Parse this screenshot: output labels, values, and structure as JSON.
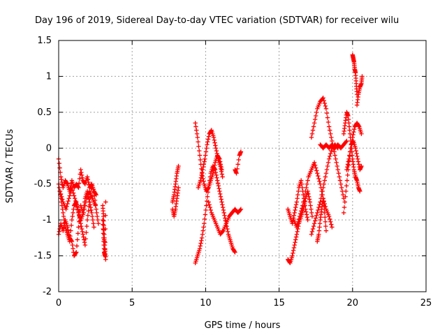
{
  "chart_data": {
    "type": "scatter",
    "title": "Day 196 of 2019, Sidereal Day-to-day VTEC variation (SDTVAR) for receiver wilu",
    "xlabel": "GPS time / hours",
    "ylabel": "SDTVAR / TECUs",
    "xlim": [
      0,
      25
    ],
    "ylim": [
      -2,
      1.5
    ],
    "xticks": [
      0,
      5,
      10,
      15,
      20,
      25
    ],
    "yticks": [
      -2,
      -1.5,
      -1,
      -0.5,
      0,
      0.5,
      1,
      1.5
    ],
    "grid": true,
    "marker": "+",
    "series": [
      {
        "name": "SDTVAR",
        "color": "#ff0000",
        "tracks": [
          {
            "x": [
              0.0,
              0.15,
              0.3,
              0.45,
              0.6,
              0.75,
              0.9,
              1.05,
              1.2,
              1.35,
              1.5,
              1.65,
              1.8,
              1.95,
              2.1,
              2.25,
              2.4,
              2.55
            ],
            "y": [
              -0.15,
              -0.4,
              -0.55,
              -0.45,
              -0.5,
              -0.6,
              -0.45,
              -0.55,
              -0.5,
              -0.55,
              -0.3,
              -0.45,
              -0.5,
              -0.4,
              -0.55,
              -0.5,
              -0.6,
              -0.65
            ]
          },
          {
            "x": [
              0.0,
              0.15,
              0.3,
              0.45,
              0.6,
              0.75,
              0.9,
              1.05,
              1.2,
              1.35,
              1.5,
              1.65,
              1.8,
              1.95,
              2.1,
              2.25,
              2.4
            ],
            "y": [
              -1.2,
              -1.05,
              -1.15,
              -1.0,
              -1.1,
              -1.25,
              -1.3,
              -1.5,
              -1.45,
              -1.1,
              -0.8,
              -0.9,
              -0.7,
              -0.6,
              -0.75,
              -0.9,
              -1.1
            ]
          },
          {
            "x": [
              0.0,
              0.15,
              0.3,
              0.45,
              0.6,
              0.75,
              0.9,
              1.05,
              1.2,
              1.35,
              1.5,
              1.65,
              1.8,
              1.95,
              2.1,
              2.25,
              2.4,
              2.55,
              2.7
            ],
            "y": [
              -0.5,
              -0.7,
              -0.9,
              -1.1,
              -1.2,
              -1.3,
              -1.0,
              -0.8,
              -0.75,
              -0.9,
              -1.05,
              -1.2,
              -1.35,
              -1.0,
              -0.75,
              -0.5,
              -0.6,
              -0.85,
              -1.05
            ]
          },
          {
            "x": [
              0.1,
              0.3,
              0.5,
              0.7,
              0.9,
              1.1,
              1.3,
              1.5,
              1.7,
              1.9,
              2.1,
              2.3,
              2.5
            ],
            "y": [
              -0.6,
              -0.75,
              -0.85,
              -0.7,
              -0.55,
              -0.7,
              -0.85,
              -1.0,
              -0.9,
              -0.7,
              -0.6,
              -0.7,
              -0.8
            ]
          },
          {
            "x": [
              3.0,
              3.05,
              3.1,
              3.15,
              3.2,
              3.0,
              3.05,
              3.1,
              3.15,
              3.2
            ],
            "y": [
              -0.8,
              -0.95,
              -1.2,
              -1.4,
              -1.55,
              -1.0,
              -1.25,
              -1.45,
              -1.5,
              -0.75
            ]
          },
          {
            "x": [
              7.75,
              7.85,
              7.95,
              8.05,
              8.15
            ],
            "y": [
              -0.75,
              -0.65,
              -0.5,
              -0.35,
              -0.25
            ]
          },
          {
            "x": [
              7.75,
              7.85,
              7.95,
              8.05,
              8.15
            ],
            "y": [
              -0.85,
              -0.95,
              -0.85,
              -0.7,
              -0.55
            ]
          },
          {
            "x": [
              9.3,
              9.45,
              9.6,
              9.75,
              9.9,
              10.05,
              10.2,
              10.35,
              10.5,
              10.65,
              10.8,
              10.95,
              11.1
            ],
            "y": [
              0.35,
              0.15,
              -0.1,
              -0.35,
              -0.5,
              -0.6,
              -0.55,
              -0.45,
              -0.35,
              -0.2,
              -0.1,
              -0.15,
              -0.3
            ]
          },
          {
            "x": [
              9.3,
              9.45,
              9.6,
              9.75,
              9.9,
              10.05,
              10.2,
              10.35,
              10.5,
              10.65,
              10.8,
              10.95,
              11.1,
              11.25,
              11.4,
              11.55,
              11.7,
              11.85,
              12.0
            ],
            "y": [
              -1.6,
              -1.5,
              -1.4,
              -1.25,
              -1.05,
              -0.8,
              -0.55,
              -0.35,
              -0.25,
              -0.3,
              -0.45,
              -0.6,
              -0.75,
              -0.9,
              -1.05,
              -1.2,
              -1.3,
              -1.4,
              -1.45
            ]
          },
          {
            "x": [
              9.5,
              9.65,
              9.8,
              9.95,
              10.1,
              10.25,
              10.4,
              10.55,
              10.7,
              10.85,
              11.0,
              11.15
            ],
            "y": [
              -0.55,
              -0.45,
              -0.3,
              -0.15,
              0.05,
              0.2,
              0.25,
              0.15,
              0.0,
              -0.15,
              -0.25,
              -0.4
            ]
          },
          {
            "x": [
              10.2,
              10.4,
              10.6,
              10.8,
              11.0,
              11.2,
              11.4,
              11.6,
              11.8,
              12.0,
              12.2,
              12.4
            ],
            "y": [
              -0.75,
              -0.9,
              -1.0,
              -1.1,
              -1.2,
              -1.15,
              -1.05,
              -0.95,
              -0.9,
              -0.85,
              -0.9,
              -0.85
            ]
          },
          {
            "x": [
              12.0,
              12.1,
              12.3,
              12.4
            ],
            "y": [
              -0.3,
              -0.35,
              -0.1,
              -0.05
            ]
          },
          {
            "x": [
              15.6,
              15.75,
              15.9,
              16.05,
              16.2,
              16.35,
              16.5,
              16.65,
              16.8,
              16.95,
              17.1,
              17.25
            ],
            "y": [
              -1.55,
              -1.6,
              -1.5,
              -1.35,
              -1.2,
              -1.05,
              -0.95,
              -0.85,
              -0.7,
              -0.6,
              -0.75,
              -0.95
            ]
          },
          {
            "x": [
              15.6,
              15.75,
              15.9,
              16.05,
              16.2,
              16.35,
              16.5,
              16.65,
              16.8,
              16.95
            ],
            "y": [
              -0.85,
              -0.95,
              -1.05,
              -0.9,
              -0.75,
              -0.55,
              -0.45,
              -0.65,
              -0.85,
              -1.0
            ]
          },
          {
            "x": [
              16.0,
              16.2,
              16.4,
              16.6,
              16.8,
              17.0,
              17.2,
              17.4,
              17.6,
              17.8,
              18.0,
              18.2,
              18.4,
              18.6
            ],
            "y": [
              -1.0,
              -1.1,
              -0.95,
              -0.8,
              -0.6,
              -0.4,
              -0.3,
              -0.2,
              -0.35,
              -0.5,
              -0.7,
              -0.85,
              -0.95,
              -1.1
            ]
          },
          {
            "x": [
              17.2,
              17.4,
              17.6,
              17.8,
              18.0,
              18.2,
              18.4,
              18.6,
              18.8,
              19.0,
              19.2,
              19.4
            ],
            "y": [
              0.15,
              0.35,
              0.55,
              0.65,
              0.7,
              0.55,
              0.3,
              0.1,
              -0.1,
              -0.3,
              -0.5,
              -0.7
            ]
          },
          {
            "x": [
              17.2,
              17.4,
              17.6,
              17.8,
              18.0,
              18.2,
              18.4,
              18.6,
              18.8,
              19.0
            ],
            "y": [
              -1.2,
              -1.05,
              -0.9,
              -0.75,
              -0.55,
              -0.35,
              -0.15,
              0.0,
              0.05,
              0.0
            ]
          },
          {
            "x": [
              17.8,
              18.0,
              18.2,
              18.4,
              18.6,
              18.8,
              19.0,
              19.2,
              19.4,
              19.6
            ],
            "y": [
              0.05,
              0.0,
              0.05,
              0.0,
              0.05,
              0.0,
              0.05,
              0.0,
              0.05,
              0.1
            ]
          },
          {
            "x": [
              17.6,
              17.7,
              17.8,
              17.9,
              18.0,
              18.1,
              18.2
            ],
            "y": [
              -1.3,
              -1.2,
              -1.0,
              -0.85,
              -0.7,
              -0.9,
              -1.15
            ]
          },
          {
            "x": [
              19.4,
              19.5,
              19.6,
              19.7,
              19.8,
              19.9,
              20.0,
              20.1,
              20.2,
              20.3,
              20.4,
              20.5
            ],
            "y": [
              0.2,
              0.35,
              0.5,
              0.45,
              0.25,
              0.05,
              -0.15,
              -0.3,
              -0.4,
              -0.45,
              -0.55,
              -0.6
            ]
          },
          {
            "x": [
              19.4,
              19.55,
              19.7,
              19.85,
              20.0,
              20.15,
              20.3,
              20.45,
              20.6
            ],
            "y": [
              -0.9,
              -0.6,
              -0.3,
              -0.05,
              0.15,
              0.3,
              0.35,
              0.3,
              0.2
            ]
          },
          {
            "x": [
              19.6,
              19.75,
              19.9,
              20.05,
              20.2,
              20.35,
              20.5,
              20.6
            ],
            "y": [
              -0.3,
              -0.15,
              0.05,
              0.1,
              0.0,
              -0.15,
              -0.3,
              -0.25
            ]
          },
          {
            "x": [
              20.0,
              20.05,
              20.1,
              20.15,
              20.2,
              20.25,
              20.3
            ],
            "y": [
              1.3,
              1.25,
              1.2,
              1.1,
              1.05,
              0.9,
              0.75
            ]
          },
          {
            "x": [
              20.3,
              20.4,
              20.5,
              20.6,
              20.65
            ],
            "y": [
              0.6,
              0.75,
              0.85,
              0.9,
              1.0
            ]
          }
        ]
      }
    ]
  }
}
